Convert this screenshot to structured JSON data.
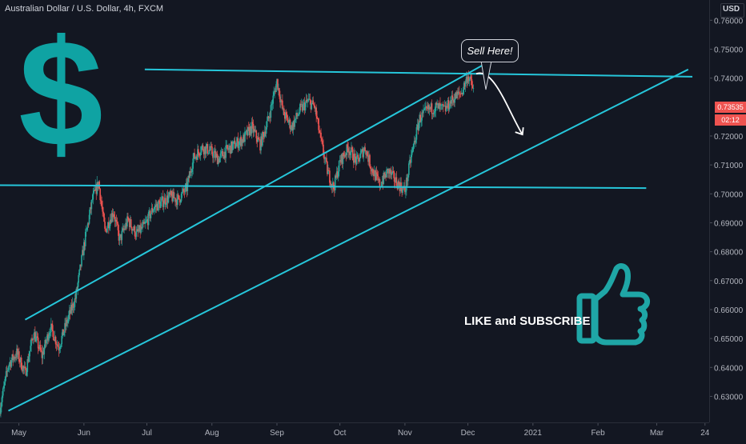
{
  "header": {
    "title": "Australian Dollar / U.S. Dollar, 4h, FXCM",
    "currency": "USD"
  },
  "badges": {
    "current_price": "0.73535",
    "countdown": "02:12"
  },
  "annotations": {
    "sell_label": "Sell Here!",
    "cta_label": "LIKE and SUBSCRIBE",
    "dollar_symbol": "$"
  },
  "colors": {
    "background": "#131722",
    "line": "#26c6da",
    "up": "#26a69a",
    "down": "#ef5350",
    "dollar": "#0fa3a3",
    "thumb": "#1fa6a6"
  },
  "icons": {
    "thumb": "thumbs-up-icon",
    "arrow": "curved-arrow-icon"
  },
  "chart_data": {
    "type": "candlestick",
    "title": "Australian Dollar / U.S. Dollar, 4h, FXCM",
    "ylim": [
      0.621,
      0.767
    ],
    "yticks": [
      0.63,
      0.64,
      0.65,
      0.66,
      0.67,
      0.68,
      0.69,
      0.7,
      0.71,
      0.72,
      0.74,
      0.75,
      0.76
    ],
    "ytick_labels": [
      "0.63000",
      "0.64000",
      "0.65000",
      "0.66000",
      "0.67000",
      "0.68000",
      "0.69000",
      "0.70000",
      "0.71000",
      "0.72000",
      "0.74000",
      "0.75000",
      "0.76000"
    ],
    "xticks": [
      "May",
      "Jun",
      "Jul",
      "Aug",
      "Sep",
      "Oct",
      "Nov",
      "Dec",
      "2021",
      "Feb",
      "Mar",
      "24"
    ],
    "x_domain": [
      "2020-04-22",
      "2021-03-26"
    ],
    "xtick_dates": [
      "2020-05-01",
      "2020-06-01",
      "2020-07-01",
      "2020-08-01",
      "2020-09-01",
      "2020-10-01",
      "2020-11-01",
      "2020-12-01",
      "2021-01-01",
      "2021-02-01",
      "2021-03-01",
      "2021-03-24"
    ],
    "price_path": [
      [
        "2020-04-22",
        0.626
      ],
      [
        "2020-04-26",
        0.641
      ],
      [
        "2020-04-30",
        0.645
      ],
      [
        "2020-05-04",
        0.638
      ],
      [
        "2020-05-08",
        0.652
      ],
      [
        "2020-05-12",
        0.644
      ],
      [
        "2020-05-16",
        0.654
      ],
      [
        "2020-05-20",
        0.647
      ],
      [
        "2020-05-24",
        0.656
      ],
      [
        "2020-05-28",
        0.664
      ],
      [
        "2020-06-01",
        0.682
      ],
      [
        "2020-06-05",
        0.698
      ],
      [
        "2020-06-08",
        0.704
      ],
      [
        "2020-06-11",
        0.687
      ],
      [
        "2020-06-15",
        0.694
      ],
      [
        "2020-06-18",
        0.684
      ],
      [
        "2020-06-22",
        0.691
      ],
      [
        "2020-06-26",
        0.686
      ],
      [
        "2020-06-30",
        0.689
      ],
      [
        "2020-07-04",
        0.695
      ],
      [
        "2020-07-08",
        0.697
      ],
      [
        "2020-07-12",
        0.699
      ],
      [
        "2020-07-16",
        0.698
      ],
      [
        "2020-07-20",
        0.702
      ],
      [
        "2020-07-23",
        0.712
      ],
      [
        "2020-07-27",
        0.716
      ],
      [
        "2020-07-31",
        0.715
      ],
      [
        "2020-08-04",
        0.712
      ],
      [
        "2020-08-08",
        0.715
      ],
      [
        "2020-08-12",
        0.717
      ],
      [
        "2020-08-16",
        0.719
      ],
      [
        "2020-08-20",
        0.723
      ],
      [
        "2020-08-24",
        0.717
      ],
      [
        "2020-08-28",
        0.726
      ],
      [
        "2020-09-01",
        0.739
      ],
      [
        "2020-09-04",
        0.728
      ],
      [
        "2020-09-08",
        0.723
      ],
      [
        "2020-09-12",
        0.729
      ],
      [
        "2020-09-16",
        0.732
      ],
      [
        "2020-09-19",
        0.73
      ],
      [
        "2020-09-22",
        0.718
      ],
      [
        "2020-09-25",
        0.708
      ],
      [
        "2020-09-28",
        0.702
      ],
      [
        "2020-10-01",
        0.711
      ],
      [
        "2020-10-05",
        0.716
      ],
      [
        "2020-10-09",
        0.711
      ],
      [
        "2020-10-13",
        0.716
      ],
      [
        "2020-10-16",
        0.709
      ],
      [
        "2020-10-20",
        0.703
      ],
      [
        "2020-10-24",
        0.708
      ],
      [
        "2020-10-28",
        0.704
      ],
      [
        "2020-11-01",
        0.701
      ],
      [
        "2020-11-04",
        0.713
      ],
      [
        "2020-11-08",
        0.726
      ],
      [
        "2020-11-12",
        0.729
      ],
      [
        "2020-11-16",
        0.73
      ],
      [
        "2020-11-20",
        0.729
      ],
      [
        "2020-11-24",
        0.733
      ],
      [
        "2020-11-28",
        0.735
      ],
      [
        "2020-12-01",
        0.741
      ],
      [
        "2020-12-04",
        0.7353
      ]
    ],
    "trendlines": [
      {
        "name": "upper-channel",
        "from": [
          "2020-05-04",
          0.6565
        ],
        "to": [
          "2020-12-22",
          0.7501
        ]
      },
      {
        "name": "lower-channel",
        "from": [
          "2020-04-26",
          0.625
        ],
        "to": [
          "2021-03-16",
          0.743
        ]
      },
      {
        "name": "horizontal-resistance",
        "from": [
          "2020-06-30",
          0.743
        ],
        "to": [
          "2021-03-18",
          0.7405
        ]
      },
      {
        "name": "horizontal-support",
        "from": [
          "2020-04-22",
          0.703
        ],
        "to": [
          "2021-02-24",
          0.702
        ]
      }
    ],
    "projection": {
      "from": [
        "2020-12-05",
        0.7415
      ],
      "to": [
        "2020-12-27",
        0.7205
      ]
    },
    "grid": false,
    "legend": "none"
  }
}
